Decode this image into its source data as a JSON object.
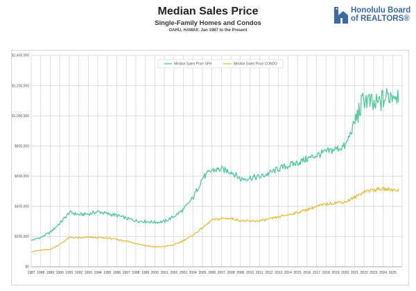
{
  "header": {
    "title": "Median Sales Price",
    "subtitle": "Single-Family Homes and Condos",
    "subsubtitle": "OAHU, HAWAII: Jan 1987 to the Present"
  },
  "logo": {
    "line1": "Honolulu Board",
    "line2": "of REALTORS®",
    "icon": "house-palm-icon",
    "color": "#3b6aa6"
  },
  "chart_data": {
    "type": "line",
    "title": "Median Sales Price",
    "subtitle": "Single-Family Homes and Condos — OAHU, HAWAII: Jan 1987 to the Present",
    "xlabel": "",
    "ylabel": "",
    "ylim": [
      0,
      1400000
    ],
    "yticks": [
      0,
      200000,
      400000,
      600000,
      800000,
      1000000,
      1200000,
      1400000
    ],
    "ytick_labels": [
      "$0",
      "$200,000",
      "$400,000",
      "$600,000",
      "$800,000",
      "$1,000,000",
      "$1,200,000",
      "$1,400,000"
    ],
    "x": [
      1987,
      1988,
      1989,
      1990,
      1991,
      1992,
      1993,
      1994,
      1995,
      1996,
      1997,
      1998,
      1999,
      2000,
      2001,
      2002,
      2003,
      2004,
      2005,
      2006,
      2007,
      2008,
      2009,
      2010,
      2011,
      2012,
      2013,
      2014,
      2015,
      2016,
      2017,
      2018,
      2019,
      2020,
      2021,
      2022,
      2023,
      2024,
      2025
    ],
    "xtick_labels": [
      "1987",
      "1988",
      "1989",
      "1990",
      "1991",
      "1992",
      "1993",
      "1994",
      "1995",
      "1996",
      "1997",
      "1998",
      "1999",
      "2000",
      "2001",
      "2002",
      "2003",
      "2004",
      "2005",
      "2006",
      "2007",
      "2008",
      "2009",
      "2010",
      "2011",
      "2012",
      "2013",
      "2014",
      "2015",
      "2016",
      "2017",
      "2018",
      "2019",
      "2020",
      "2021",
      "2022",
      "2023",
      "2024",
      "2025"
    ],
    "grid": true,
    "legend": "top-center",
    "series": [
      {
        "name": "Median Sales Price SFH",
        "color": "#4ec99a",
        "values": [
          175000,
          195000,
          230000,
          290000,
          360000,
          345000,
          350000,
          365000,
          350000,
          340000,
          320000,
          305000,
          300000,
          295000,
          300000,
          335000,
          380000,
          460000,
          590000,
          640000,
          645000,
          630000,
          580000,
          590000,
          595000,
          620000,
          650000,
          670000,
          690000,
          715000,
          740000,
          760000,
          780000,
          800000,
          960000,
          1120000,
          1060000,
          1110000,
          1150000
        ]
      },
      {
        "name": "Median Sales Price CONDO",
        "color": "#e3be3c",
        "values": [
          100000,
          110000,
          115000,
          150000,
          195000,
          190000,
          195000,
          192000,
          190000,
          180000,
          170000,
          155000,
          140000,
          130000,
          135000,
          145000,
          175000,
          210000,
          260000,
          310000,
          320000,
          320000,
          305000,
          300000,
          305000,
          315000,
          330000,
          345000,
          360000,
          380000,
          400000,
          415000,
          425000,
          430000,
          460000,
          500000,
          510000,
          515000,
          510000
        ]
      }
    ]
  }
}
